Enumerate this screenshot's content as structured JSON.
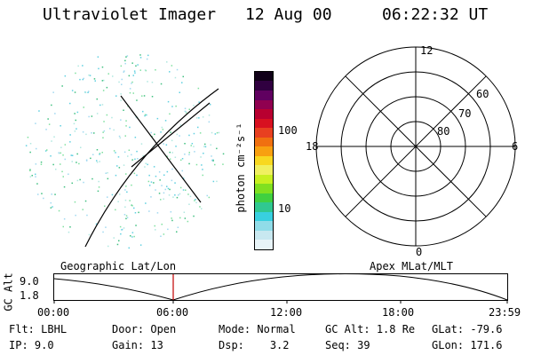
{
  "header": {
    "instrument": "Ultraviolet Imager",
    "date": "12 Aug 00",
    "time": "06:22:32 UT"
  },
  "colorbar": {
    "unit_label": "photon cm⁻²s⁻¹",
    "ticks": [
      "100",
      "10"
    ],
    "colors": [
      "#e8f4f8",
      "#c8e8f0",
      "#90dce8",
      "#38d0e0",
      "#30c890",
      "#40d040",
      "#80e020",
      "#c8f020",
      "#f0f060",
      "#f8d820",
      "#f8a010",
      "#f07010",
      "#e84020",
      "#d81020",
      "#b80030",
      "#900050",
      "#600060",
      "#300040",
      "#100018"
    ]
  },
  "polar_plot": {
    "labels": {
      "top": "12",
      "bottom": "0",
      "left": "18",
      "right": "6"
    },
    "rings": [
      "60",
      "70",
      "80"
    ]
  },
  "timeline": {
    "left_label": "Geographic Lat/Lon",
    "right_label": "Apex MLat/MLT",
    "yaxis_label": "GC Alt",
    "ymax": "9.0",
    "ymin": "1.8",
    "xticks": [
      "00:00",
      "06:00",
      "12:00",
      "18:00",
      "23:59"
    ]
  },
  "info": {
    "filter": {
      "label": "Flt:",
      "value": "LBHL"
    },
    "ip": {
      "label": "IP:",
      "value": "9.0"
    },
    "door": {
      "label": "Door:",
      "value": "Open"
    },
    "gain": {
      "label": "Gain:",
      "value": "13"
    },
    "mode": {
      "label": "Mode:",
      "value": "Normal"
    },
    "dsp": {
      "label": "Dsp:",
      "value": "3.2"
    },
    "gc_alt": {
      "label": "GC Alt:",
      "value": "1.8 Re"
    },
    "seq": {
      "label": "Seq:",
      "value": "39"
    },
    "glat": {
      "label": "GLat:",
      "value": "-79.6"
    },
    "glon": {
      "label": "GLon:",
      "value": "171.6"
    }
  }
}
